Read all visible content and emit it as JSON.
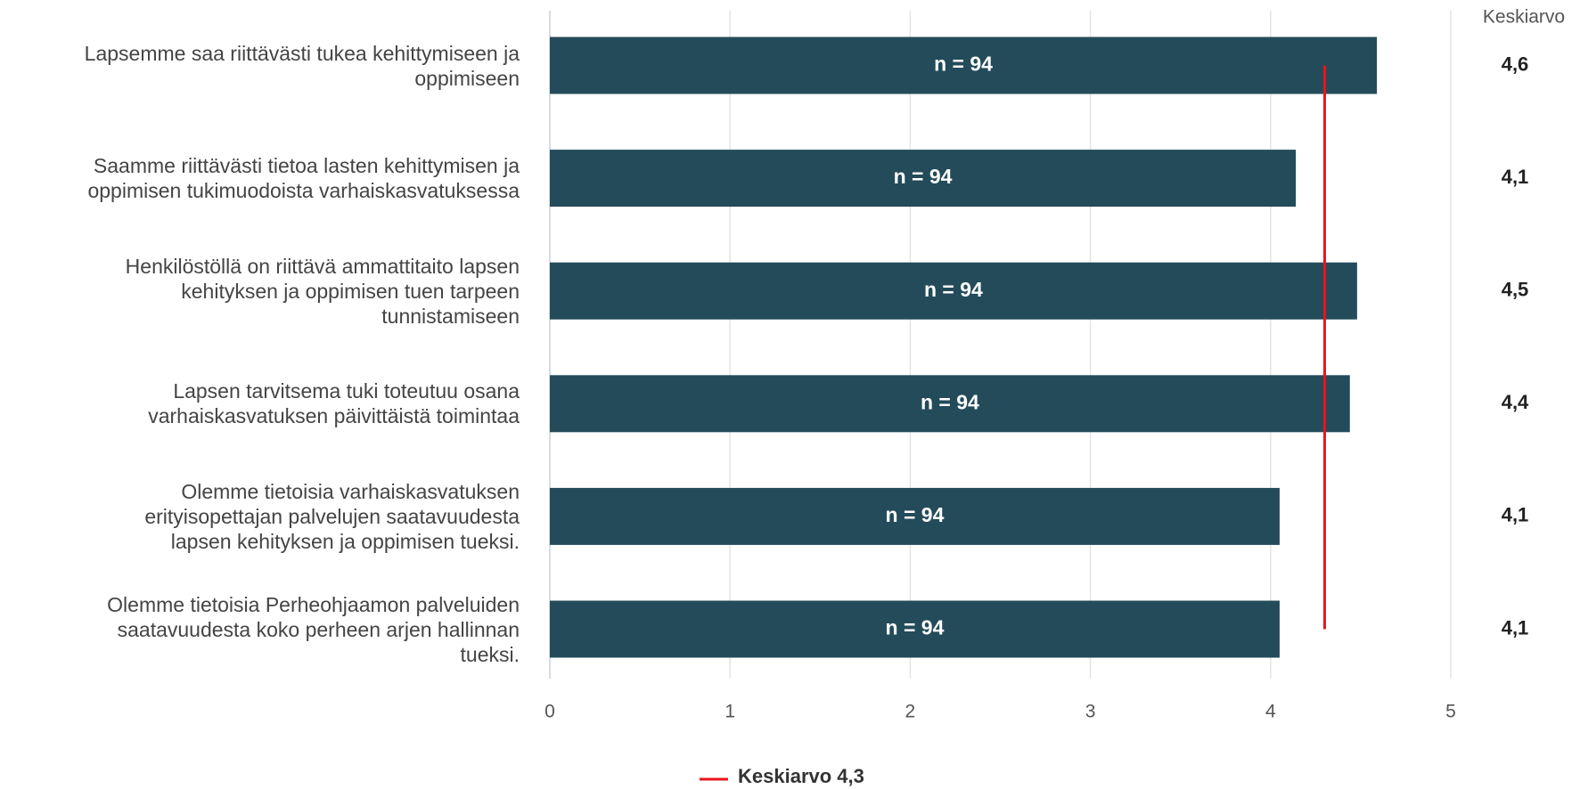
{
  "chart_data": {
    "type": "bar",
    "orientation": "horizontal",
    "categories": [
      "Lapsemme saa riittävästi tukea kehittymiseen ja\noppimiseen",
      "Saamme riittävästi tietoa lasten kehittymisen ja\noppimisen tukimuodoista varhaiskasvatuksessa",
      "Henkilöstöllä on riittävä ammattitaito lapsen\nkehityksen ja oppimisen tuen tarpeen\ntunnistamiseen",
      "Lapsen tarvitsema tuki toteutuu osana\nvarhaiskasvatuksen päivittäistä toimintaa",
      "Olemme tietoisia varhaiskasvatuksen\nerityisopettajan palvelujen saatavuudesta\nlapsen kehityksen ja oppimisen tueksi.",
      "Olemme tietoisia Perheohjaamon palveluiden\nsaatavuudesta koko perheen arjen hallinnan\ntueksi."
    ],
    "values": [
      4.59,
      4.14,
      4.48,
      4.44,
      4.05,
      4.05
    ],
    "value_labels": [
      "4,6",
      "4,1",
      "4,5",
      "4,4",
      "4,1",
      "4,1"
    ],
    "n_labels": [
      "n = 94",
      "n = 94",
      "n = 94",
      "n = 94",
      "n = 94",
      "n = 94"
    ],
    "value_column_title": "Keskiarvo",
    "color": "#234b5a",
    "mean_line": {
      "name": "Keskiarvo 4,3",
      "value": 4.3,
      "color": "#e8141c"
    },
    "xlim": [
      0,
      5
    ],
    "xticks": [
      0,
      1,
      2,
      3,
      4,
      5
    ],
    "grid": true,
    "legend": "bottom"
  }
}
